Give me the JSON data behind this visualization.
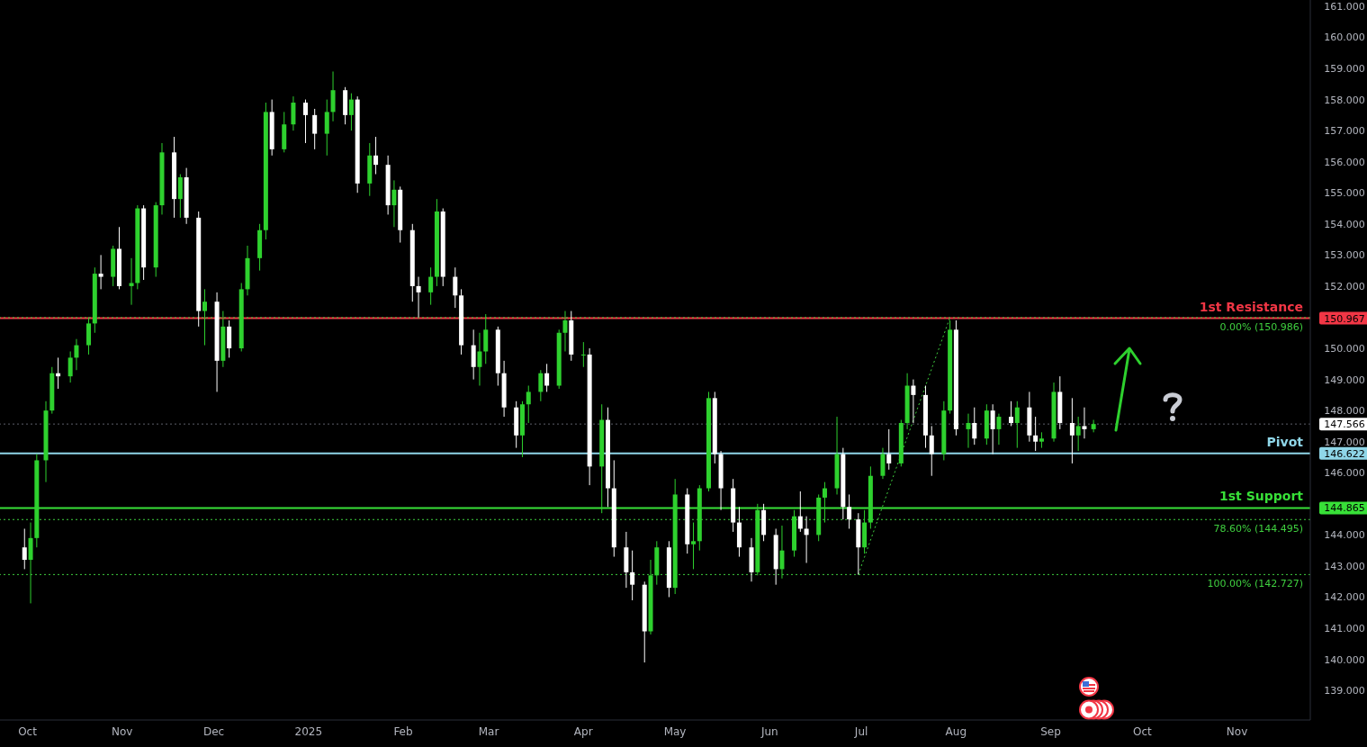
{
  "chart_data": {
    "type": "candlestick",
    "colors": [
      "#ffffff",
      "#2ed12e",
      "#2ed12e",
      "#2ed12e",
      "#2ed12e",
      "#ffffff",
      "#2ed12e",
      "#2ed12e",
      "#2ed12e",
      "#2ed12e",
      "#ffffff",
      "#2ed12e",
      "#ffffff",
      "#2ed12e",
      "#2ed12e",
      "#ffffff",
      "#2ed12e",
      "#2ed12e",
      "#ffffff",
      "#2ed12e",
      "#ffffff",
      "#ffffff",
      "#2ed12e",
      "#ffffff",
      "#2ed12e",
      "#ffffff",
      "#2ed12e",
      "#2ed12e",
      "#2ed12e",
      "#2ed12e",
      "#ffffff",
      "#2ed12e",
      "#2ed12e",
      "#ffffff",
      "#ffffff",
      "#2ed12e",
      "#2ed12e",
      "#ffffff",
      "#2ed12e",
      "#ffffff",
      "#2ed12e",
      "#ffffff",
      "#ffffff",
      "#2ed12e",
      "#ffffff",
      "#ffffff",
      "#ffffff",
      "#2ed12e",
      "#2ed12e",
      "#ffffff",
      "#ffffff",
      "#ffffff",
      "#ffffff",
      "#2ed12e",
      "#2ed12e",
      "#ffffff",
      "#ffffff",
      "#ffffff",
      "#2ed12e",
      "#2ed12e",
      "#2ed12e",
      "#ffffff",
      "#2ed12e",
      "#2ed12e",
      "#ffffff",
      "#2ed12e",
      "#ffffff",
      "#2ed12e",
      "#ffffff",
      "#ffffff",
      "#ffffff",
      "#ffffff",
      "#ffffff",
      "#2ed12e",
      "#2ed12e",
      "#ffffff",
      "#2ed12e",
      "#ffffff",
      "#2ed12e",
      "#2ed12e",
      "#2ed12e",
      "#ffffff",
      "#ffffff",
      "#ffffff",
      "#ffffff",
      "#ffffff",
      "#2ed12e",
      "#ffffff",
      "#ffffff",
      "#2ed12e",
      "#2ed12e",
      "#ffffff",
      "#ffffff",
      "#2ed12e",
      "#2ed12e",
      "#2ed12e",
      "#ffffff",
      "#ffffff",
      "#ffffff",
      "#2ed12e",
      "#2ed12e",
      "#2ed12e",
      "#ffffff",
      "#2ed12e",
      "#2ed12e",
      "#ffffff",
      "#ffffff",
      "#ffffff",
      "#2ed12e",
      "#2ed12e",
      "#ffffff",
      "#2ed12e",
      "#ffffff",
      "#2ed12e",
      "#ffffff",
      "#2ed12e",
      "#ffffff",
      "#2ed12e",
      "#ffffff",
      "#ffffff",
      "#2ed12e",
      "#2ed12e",
      "#ffffff",
      "#ffffff",
      "#2ed12e",
      "#ffffff",
      "#2ed12e"
    ],
    "x": [
      "2024-09-30",
      "2024-10-02",
      "2024-10-04",
      "2024-10-07",
      "2024-10-09",
      "2024-10-11",
      "2024-10-15",
      "2024-10-17",
      "2024-10-21",
      "2024-10-23",
      "2024-10-25",
      "2024-10-29",
      "2024-10-31",
      "2024-11-04",
      "2024-11-06",
      "2024-11-08",
      "2024-11-12",
      "2024-11-14",
      "2024-11-18",
      "2024-11-20",
      "2024-11-22",
      "2024-11-26",
      "2024-11-28",
      "2024-12-02",
      "2024-12-04",
      "2024-12-06",
      "2024-12-10",
      "2024-12-12",
      "2024-12-16",
      "2024-12-18",
      "2024-12-20",
      "2024-12-24",
      "2024-12-27",
      "2024-12-31",
      "2025-01-03",
      "2025-01-07",
      "2025-01-09",
      "2025-01-13",
      "2025-01-15",
      "2025-01-17",
      "2025-01-21",
      "2025-01-23",
      "2025-01-27",
      "2025-01-29",
      "2025-01-31",
      "2025-02-04",
      "2025-02-06",
      "2025-02-10",
      "2025-02-12",
      "2025-02-14",
      "2025-02-18",
      "2025-02-20",
      "2025-02-24",
      "2025-02-26",
      "2025-02-28",
      "2025-03-04",
      "2025-03-06",
      "2025-03-10",
      "2025-03-12",
      "2025-03-14",
      "2025-03-18",
      "2025-03-20",
      "2025-03-24",
      "2025-03-26",
      "2025-03-28",
      "2025-04-01",
      "2025-04-03",
      "2025-04-07",
      "2025-04-09",
      "2025-04-11",
      "2025-04-15",
      "2025-04-17",
      "2025-04-21",
      "2025-04-23",
      "2025-04-25",
      "2025-04-29",
      "2025-05-01",
      "2025-05-05",
      "2025-05-07",
      "2025-05-09",
      "2025-05-12",
      "2025-05-14",
      "2025-05-16",
      "2025-05-20",
      "2025-05-22",
      "2025-05-26",
      "2025-05-28",
      "2025-05-30",
      "2025-06-03",
      "2025-06-05",
      "2025-06-09",
      "2025-06-11",
      "2025-06-13",
      "2025-06-17",
      "2025-06-19",
      "2025-06-23",
      "2025-06-25",
      "2025-06-27",
      "2025-06-30",
      "2025-07-02",
      "2025-07-04",
      "2025-07-08",
      "2025-07-10",
      "2025-07-14",
      "2025-07-16",
      "2025-07-18",
      "2025-07-22",
      "2025-07-24",
      "2025-07-28",
      "2025-07-30",
      "2025-08-01",
      "2025-08-05",
      "2025-08-07",
      "2025-08-11",
      "2025-08-13",
      "2025-08-15",
      "2025-08-19",
      "2025-08-21",
      "2025-08-25",
      "2025-08-27",
      "2025-08-29",
      "2025-09-02",
      "2025-09-04",
      "2025-09-08",
      "2025-09-10",
      "2025-09-12",
      "2025-09-15"
    ],
    "ohlc": [
      [
        143.6,
        144.2,
        142.9,
        143.2
      ],
      [
        143.2,
        144.4,
        141.8,
        143.9
      ],
      [
        143.9,
        146.6,
        143.6,
        146.4
      ],
      [
        146.4,
        148.3,
        145.7,
        148.0
      ],
      [
        148.0,
        149.4,
        147.9,
        149.2
      ],
      [
        149.2,
        149.7,
        148.7,
        149.1
      ],
      [
        149.1,
        149.9,
        148.9,
        149.7
      ],
      [
        149.7,
        150.3,
        149.3,
        150.1
      ],
      [
        150.1,
        151.0,
        149.8,
        150.8
      ],
      [
        150.8,
        152.6,
        150.5,
        152.4
      ],
      [
        152.4,
        153.0,
        151.9,
        152.3
      ],
      [
        152.3,
        153.3,
        152.0,
        153.2
      ],
      [
        153.2,
        153.9,
        151.9,
        152.0
      ],
      [
        152.0,
        152.9,
        151.4,
        152.1
      ],
      [
        152.1,
        154.6,
        151.9,
        154.5
      ],
      [
        154.5,
        154.6,
        152.2,
        152.6
      ],
      [
        152.6,
        154.7,
        152.3,
        154.6
      ],
      [
        154.6,
        156.6,
        154.3,
        156.3
      ],
      [
        156.3,
        156.8,
        154.2,
        154.8
      ],
      [
        154.8,
        155.6,
        154.2,
        155.5
      ],
      [
        155.5,
        155.8,
        154.0,
        154.2
      ],
      [
        154.2,
        154.4,
        150.7,
        151.2
      ],
      [
        151.2,
        151.9,
        150.1,
        151.5
      ],
      [
        151.5,
        151.8,
        148.6,
        149.6
      ],
      [
        149.6,
        151.2,
        149.4,
        150.7
      ],
      [
        150.7,
        150.9,
        149.7,
        150.0
      ],
      [
        150.0,
        152.1,
        149.9,
        151.9
      ],
      [
        151.9,
        153.3,
        151.7,
        152.9
      ],
      [
        152.9,
        154.0,
        152.5,
        153.8
      ],
      [
        153.8,
        157.9,
        153.5,
        157.6
      ],
      [
        157.6,
        158.0,
        156.2,
        156.4
      ],
      [
        156.4,
        157.6,
        156.3,
        157.2
      ],
      [
        157.2,
        158.1,
        157.0,
        157.9
      ],
      [
        157.9,
        158.0,
        156.6,
        157.5
      ],
      [
        157.5,
        157.7,
        156.4,
        156.9
      ],
      [
        156.9,
        158.0,
        156.2,
        157.6
      ],
      [
        157.6,
        158.9,
        157.3,
        158.3
      ],
      [
        158.3,
        158.4,
        157.2,
        157.5
      ],
      [
        157.5,
        158.2,
        157.0,
        158.0
      ],
      [
        158.0,
        158.1,
        155.0,
        155.3
      ],
      [
        155.3,
        156.6,
        154.9,
        156.2
      ],
      [
        156.2,
        156.8,
        155.6,
        155.9
      ],
      [
        155.9,
        156.2,
        154.3,
        154.6
      ],
      [
        154.6,
        155.4,
        153.9,
        155.1
      ],
      [
        155.1,
        155.2,
        153.4,
        153.8
      ],
      [
        153.8,
        154.0,
        151.5,
        152.0
      ],
      [
        152.0,
        152.3,
        151.0,
        151.8
      ],
      [
        151.8,
        152.6,
        151.4,
        152.3
      ],
      [
        152.3,
        154.8,
        152.0,
        154.4
      ],
      [
        154.4,
        154.5,
        152.0,
        152.3
      ],
      [
        152.3,
        152.6,
        151.3,
        151.7
      ],
      [
        151.7,
        151.9,
        149.8,
        150.1
      ],
      [
        150.1,
        150.6,
        149.0,
        149.4
      ],
      [
        149.4,
        150.5,
        148.8,
        149.9
      ],
      [
        149.9,
        151.1,
        149.5,
        150.6
      ],
      [
        150.6,
        150.7,
        148.8,
        149.2
      ],
      [
        149.2,
        149.6,
        147.8,
        148.1
      ],
      [
        148.1,
        148.3,
        146.8,
        147.2
      ],
      [
        147.2,
        148.3,
        146.5,
        148.2
      ],
      [
        148.2,
        148.8,
        147.6,
        148.6
      ],
      [
        148.6,
        149.3,
        148.3,
        149.2
      ],
      [
        149.2,
        149.5,
        148.6,
        148.8
      ],
      [
        148.8,
        150.6,
        148.7,
        150.5
      ],
      [
        150.5,
        151.2,
        149.9,
        150.9
      ],
      [
        150.9,
        151.2,
        149.6,
        149.8
      ],
      [
        149.8,
        150.2,
        149.4,
        149.8
      ],
      [
        149.8,
        150.0,
        145.6,
        146.2
      ],
      [
        146.2,
        148.2,
        144.7,
        147.7
      ],
      [
        147.7,
        148.1,
        144.9,
        145.5
      ],
      [
        145.5,
        146.4,
        143.3,
        143.6
      ],
      [
        143.6,
        144.1,
        142.3,
        142.8
      ],
      [
        142.8,
        143.5,
        141.9,
        142.4
      ],
      [
        142.4,
        142.5,
        139.9,
        140.9
      ],
      [
        140.9,
        143.2,
        140.8,
        142.7
      ],
      [
        142.7,
        143.8,
        142.4,
        143.6
      ],
      [
        143.6,
        143.8,
        142.0,
        142.3
      ],
      [
        142.3,
        145.8,
        142.1,
        145.3
      ],
      [
        145.3,
        145.5,
        143.4,
        143.7
      ],
      [
        143.7,
        144.4,
        142.9,
        143.8
      ],
      [
        143.8,
        145.6,
        143.5,
        145.5
      ],
      [
        145.5,
        148.6,
        145.4,
        148.4
      ],
      [
        148.4,
        148.6,
        146.3,
        146.6
      ],
      [
        146.6,
        146.7,
        144.8,
        145.5
      ],
      [
        145.5,
        145.8,
        144.1,
        144.4
      ],
      [
        144.4,
        144.9,
        143.3,
        143.6
      ],
      [
        143.6,
        143.9,
        142.5,
        142.8
      ],
      [
        142.8,
        145.0,
        142.7,
        144.8
      ],
      [
        144.8,
        145.0,
        143.8,
        144.0
      ],
      [
        144.0,
        144.2,
        142.4,
        142.9
      ],
      [
        142.9,
        144.3,
        142.6,
        143.5
      ],
      [
        143.5,
        144.8,
        143.3,
        144.6
      ],
      [
        144.6,
        145.4,
        144.1,
        144.2
      ],
      [
        144.2,
        144.6,
        143.1,
        144.0
      ],
      [
        144.0,
        145.3,
        143.8,
        145.2
      ],
      [
        145.2,
        145.7,
        144.4,
        145.5
      ],
      [
        145.5,
        147.8,
        145.3,
        146.6
      ],
      [
        146.6,
        146.8,
        144.5,
        144.9
      ],
      [
        144.9,
        145.3,
        144.2,
        144.5
      ],
      [
        144.5,
        144.7,
        142.727,
        143.6
      ],
      [
        143.6,
        144.8,
        143.4,
        144.4
      ],
      [
        144.4,
        146.2,
        144.2,
        145.9
      ],
      [
        145.9,
        146.8,
        145.8,
        146.6
      ],
      [
        146.6,
        147.4,
        146.1,
        146.3
      ],
      [
        146.3,
        147.7,
        146.2,
        147.6
      ],
      [
        147.6,
        149.2,
        147.4,
        148.8
      ],
      [
        148.8,
        149.0,
        147.6,
        148.5
      ],
      [
        148.5,
        148.8,
        146.8,
        147.2
      ],
      [
        147.2,
        147.5,
        145.9,
        146.6
      ],
      [
        146.6,
        148.3,
        146.4,
        148.0
      ],
      [
        148.0,
        150.9,
        147.9,
        150.6
      ],
      [
        150.6,
        150.9,
        147.2,
        147.4
      ],
      [
        147.4,
        147.9,
        146.8,
        147.6
      ],
      [
        147.6,
        148.1,
        146.9,
        147.1
      ],
      [
        147.1,
        148.2,
        146.9,
        148.0
      ],
      [
        148.0,
        148.2,
        146.6,
        147.4
      ],
      [
        147.4,
        147.9,
        146.9,
        147.8
      ],
      [
        147.8,
        148.3,
        147.5,
        147.6
      ],
      [
        147.6,
        148.3,
        146.8,
        148.1
      ],
      [
        148.1,
        148.6,
        147.0,
        147.2
      ],
      [
        147.2,
        147.8,
        146.7,
        147.0
      ],
      [
        147.0,
        147.3,
        146.8,
        147.1
      ],
      [
        147.1,
        148.9,
        147.0,
        148.6
      ],
      [
        148.6,
        149.1,
        147.4,
        147.6
      ],
      [
        147.6,
        148.4,
        146.3,
        147.2
      ],
      [
        147.2,
        147.8,
        146.7,
        147.5
      ],
      [
        147.5,
        148.1,
        147.1,
        147.4
      ],
      [
        147.4,
        147.7,
        147.3,
        147.566
      ]
    ],
    "series": [
      {
        "type": "line",
        "color": "#3fcf3f",
        "line_style": "dotted",
        "x": [
          "2025-06-30",
          "2025-07-30"
        ],
        "values": [
          142.727,
          150.986
        ]
      }
    ],
    "xlim": [
      "2024-09-22",
      "2025-11-25"
    ],
    "xticks": [
      {
        "value": "2024-10-01",
        "label": "Oct"
      },
      {
        "value": "2024-11-01",
        "label": "Nov"
      },
      {
        "value": "2024-12-01",
        "label": "Dec"
      },
      {
        "value": "2025-01-01",
        "label": "2025"
      },
      {
        "value": "2025-02-01",
        "label": "Feb"
      },
      {
        "value": "2025-03-01",
        "label": "Mar"
      },
      {
        "value": "2025-04-01",
        "label": "Apr"
      },
      {
        "value": "2025-05-01",
        "label": "May"
      },
      {
        "value": "2025-06-01",
        "label": "Jun"
      },
      {
        "value": "2025-07-01",
        "label": "Jul"
      },
      {
        "value": "2025-08-01",
        "label": "Aug"
      },
      {
        "value": "2025-09-01",
        "label": "Sep"
      },
      {
        "value": "2025-10-01",
        "label": "Oct"
      },
      {
        "value": "2025-11-01",
        "label": "Nov"
      }
    ],
    "ylim": [
      138.05,
      161.2
    ],
    "yticks": [
      {
        "value": 139,
        "label": "139.000"
      },
      {
        "value": 140,
        "label": "140.000"
      },
      {
        "value": 141,
        "label": "141.000"
      },
      {
        "value": 142,
        "label": "142.000"
      },
      {
        "value": 143,
        "label": "143.000"
      },
      {
        "value": 144,
        "label": "144.000"
      },
      {
        "value": 144.865,
        "label": "144.865"
      },
      {
        "value": 146,
        "label": "146.000"
      },
      {
        "value": 146.622,
        "label": "146.622"
      },
      {
        "value": 147,
        "label": "147.000"
      },
      {
        "value": 147.566,
        "label": "147.566"
      },
      {
        "value": 148,
        "label": "148.000"
      },
      {
        "value": 149,
        "label": "149.000"
      },
      {
        "value": 150,
        "label": "150.000"
      },
      {
        "value": 150.967,
        "label": "150.967"
      },
      {
        "value": 152,
        "label": "152.000"
      },
      {
        "value": 153,
        "label": "153.000"
      },
      {
        "value": 154,
        "label": "154.000"
      },
      {
        "value": 155,
        "label": "155.000"
      },
      {
        "value": 156,
        "label": "156.000"
      },
      {
        "value": 157,
        "label": "157.000"
      },
      {
        "value": 158,
        "label": "158.000"
      },
      {
        "value": 159,
        "label": "159.000"
      },
      {
        "value": 160,
        "label": "160.000"
      },
      {
        "value": 161,
        "label": "161.000"
      }
    ],
    "ref_lines": [
      {
        "axis": "y",
        "value": 150.967,
        "label": "1st Resistance",
        "color": "#f23645",
        "line_style": "solid"
      },
      {
        "axis": "y",
        "value": 146.622,
        "label": "Pivot",
        "color": "#8fd6e8",
        "line_style": "solid"
      },
      {
        "axis": "y",
        "value": 144.865,
        "label": "1st Support",
        "color": "#38e038",
        "line_style": "solid"
      },
      {
        "axis": "y",
        "value": 147.566,
        "label": null,
        "color": "#5d606b",
        "line_style": "dotted"
      },
      {
        "axis": "y",
        "value": 150.986,
        "label": "0.00% (150.986)",
        "color": "#3fcf3f",
        "line_style": "dotted"
      },
      {
        "axis": "y",
        "value": 144.495,
        "label": "78.60% (144.495)",
        "color": "#3fcf3f",
        "line_style": "dotted"
      },
      {
        "axis": "y",
        "value": 142.727,
        "label": "100.00% (142.727)",
        "color": "#3fcf3f",
        "line_style": "dotted"
      }
    ]
  }
}
